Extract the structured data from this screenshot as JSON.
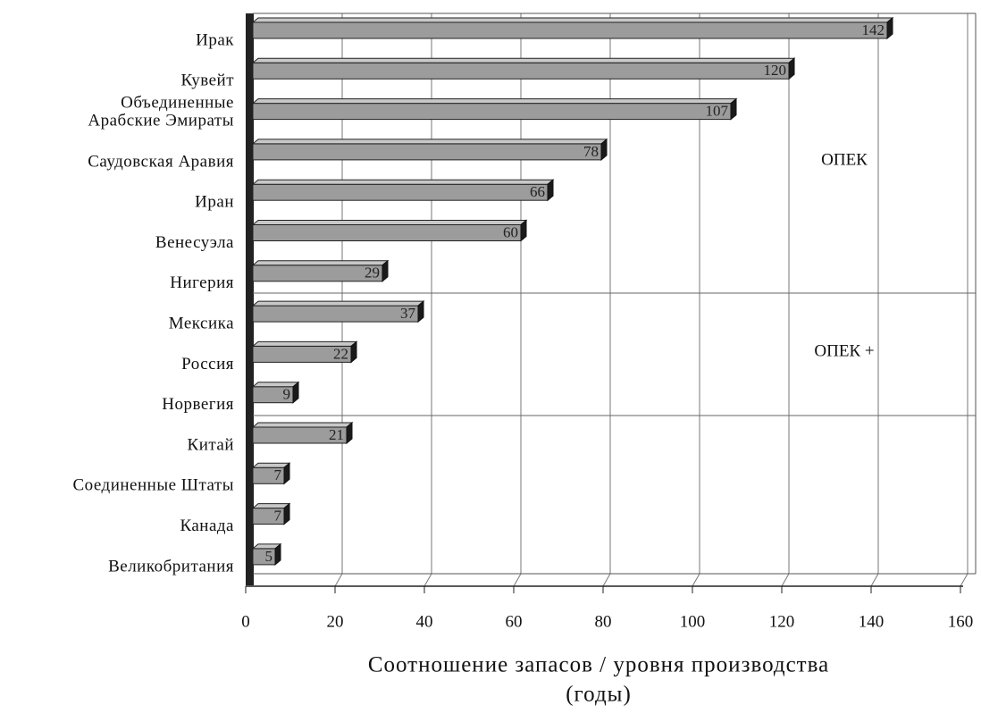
{
  "chart_data": {
    "type": "bar3d_h",
    "categories": [
      "Ирак",
      "Кувейт",
      "Объединенные Арабские Эмираты",
      "Саудовская Аравия",
      "Иран",
      "Венесуэла",
      "Нигерия",
      "Мексика",
      "Россия",
      "Норвегия",
      "Китай",
      "Соединенные Штаты",
      "Канада",
      "Великобритания"
    ],
    "values": [
      142,
      120,
      107,
      78,
      66,
      60,
      29,
      37,
      22,
      9,
      21,
      7,
      7,
      5
    ],
    "color": "#9c9c9c",
    "xlim": [
      0,
      160
    ],
    "xticks": [
      0,
      20,
      40,
      60,
      80,
      100,
      120,
      140,
      160
    ],
    "grid": true,
    "annotations": [
      "ОПЕК",
      "ОПЕК +"
    ],
    "xlabel": [
      "Соотношение запасов / уровня производства",
      "(годы)"
    ]
  }
}
